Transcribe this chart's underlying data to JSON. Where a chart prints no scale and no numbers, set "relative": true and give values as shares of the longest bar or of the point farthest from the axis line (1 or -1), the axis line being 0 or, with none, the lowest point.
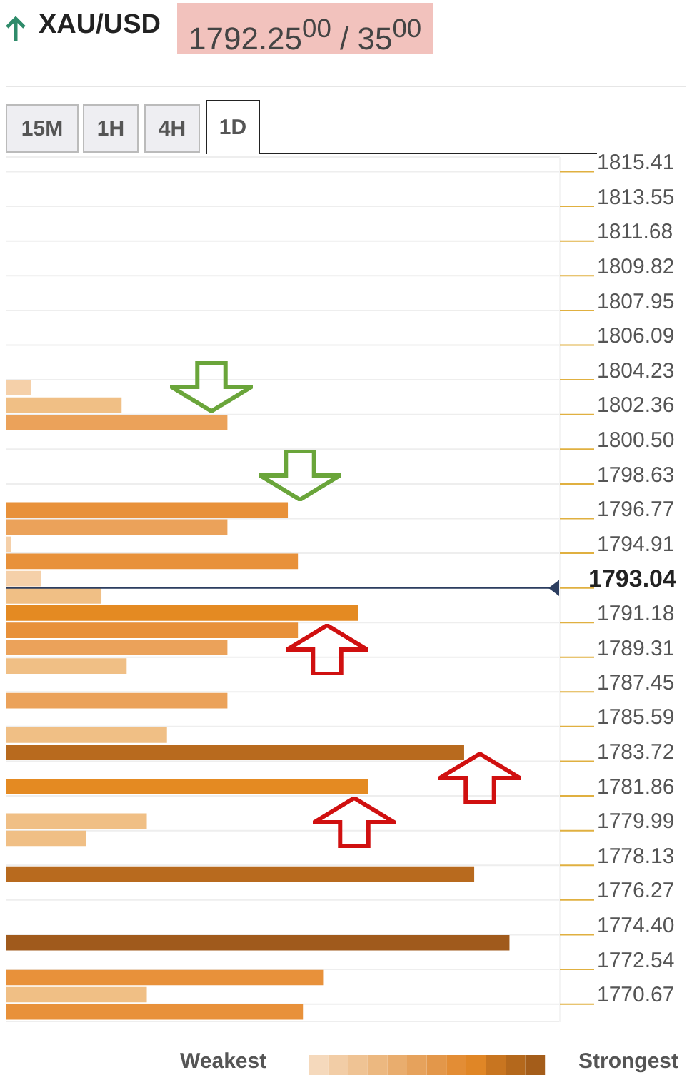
{
  "chart_data": {
    "type": "bar",
    "orientation": "horizontal",
    "relative": true,
    "title": "XAU/USD",
    "subtitle": "1792.25$^{00}$ / 35$^{00}$",
    "annotations": [
      "15M",
      "1H",
      "4H",
      "1D",
      "Weakest",
      "Strongest"
    ],
    "x": [
      1803.83,
      1802.9,
      1801.97,
      1797.27,
      1796.35,
      1795.42,
      1794.5,
      1793.57,
      1792.64,
      1791.72,
      1790.79,
      1789.87,
      1788.87,
      1787.01,
      1785.16,
      1784.24,
      1782.39,
      1780.54,
      1779.61,
      1777.69,
      1774.0,
      1772.13,
      1771.21,
      1770.28
    ],
    "values": [
      0.05,
      0.23,
      0.44,
      0.56,
      0.44,
      0.01,
      0.58,
      0.07,
      0.19,
      0.7,
      0.58,
      0.44,
      0.24,
      0.44,
      0.32,
      0.91,
      0.72,
      0.28,
      0.16,
      0.93,
      1,
      0.63,
      0.28,
      0.59
    ],
    "colors": [
      "#f5d0a9",
      "#f0bf85",
      "#eba25a",
      "#e8913a",
      "#eba25a",
      "#f5d0a9",
      "#e8913a",
      "#f5d0a9",
      "#f0bf85",
      "#e48a22",
      "#e8913a",
      "#eba25a",
      "#f0bf85",
      "#eba25a",
      "#f0bf85",
      "#b86a1e",
      "#e48a22",
      "#f0bf85",
      "#f0bf85",
      "#b86a1e",
      "#a05a1c",
      "#e8913a",
      "#f0bf85",
      "#e8913a"
    ],
    "ylim": [
      1769.7,
      1816.2
    ],
    "yticks": [
      1815.41,
      1813.55,
      1811.68,
      1809.82,
      1807.95,
      1806.09,
      1804.23,
      1802.36,
      {
        "value": 1800.5,
        "label": "1800.50"
      },
      1798.63,
      1796.77,
      1794.91,
      {
        "value": 1793.04,
        "label": null
      },
      1791.18,
      1789.31,
      1787.45,
      1785.59,
      1783.72,
      1781.86,
      1779.99,
      1778.13,
      1776.27,
      {
        "value": 1774.4,
        "label": "1774.40"
      },
      1772.54,
      1770.67
    ],
    "grid": "y",
    "ref_lines": [
      {
        "axis": "y",
        "value": 1793.04,
        "label": "1793.04",
        "color": "#2c3e60"
      }
    ]
  }
}
